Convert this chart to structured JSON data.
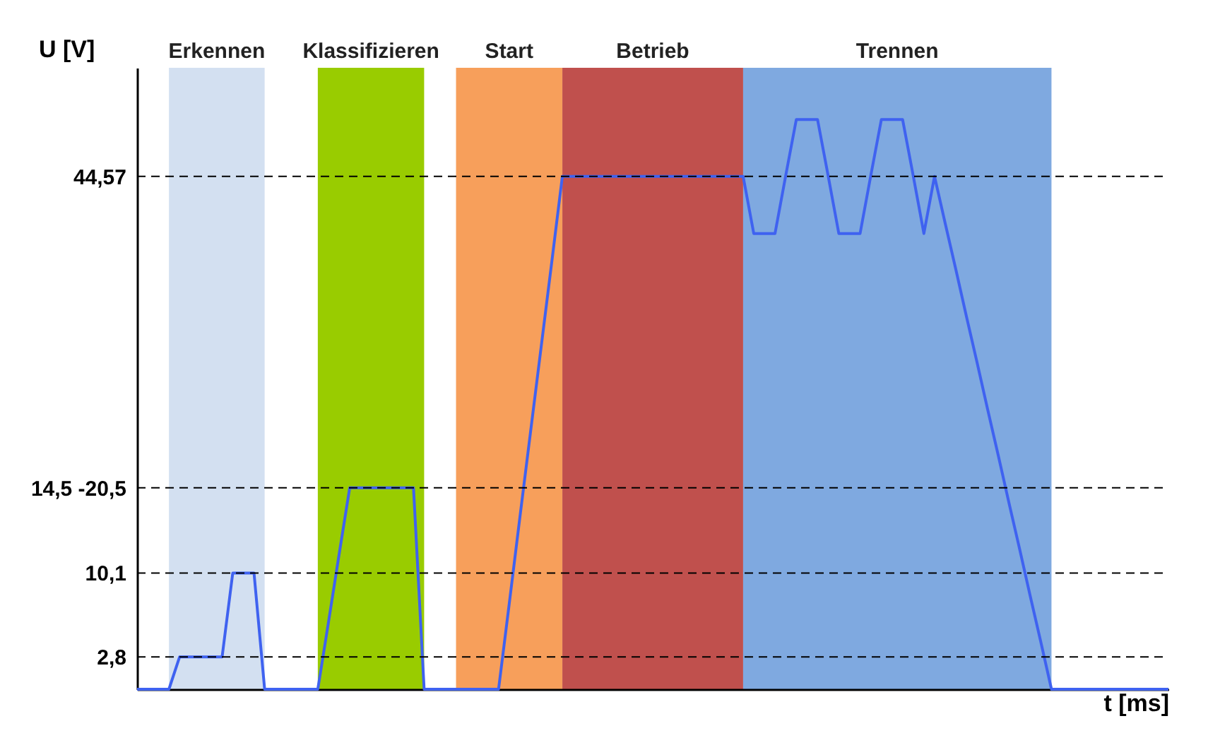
{
  "chart_data": {
    "type": "line",
    "ylabel": "U [V]",
    "xlabel": "t [ms]",
    "ylim": [
      0,
      54
    ],
    "categories": [
      null,
      null,
      null,
      null,
      null,
      null,
      null,
      null,
      null,
      null,
      null,
      null,
      null,
      null,
      null,
      null,
      null,
      null,
      null,
      null,
      null,
      null,
      null,
      null,
      null,
      null,
      null,
      null,
      null,
      null,
      null,
      null,
      null,
      null,
      null,
      null,
      null,
      null,
      null,
      null,
      null,
      null,
      null,
      null,
      null,
      null,
      null,
      null,
      null,
      null,
      null,
      null,
      null,
      null,
      null,
      null,
      null,
      null,
      null,
      null,
      null,
      null,
      null,
      null,
      null,
      null,
      null,
      null,
      null,
      null,
      null,
      null,
      null,
      null,
      null,
      null,
      null,
      null,
      null,
      null,
      null,
      null,
      null,
      null,
      null,
      null,
      null,
      null,
      null,
      null,
      null,
      null,
      null,
      null,
      null,
      null,
      null,
      null
    ],
    "yticks": [
      {
        "value": 2.8,
        "label": "2,8"
      },
      {
        "value": 10.1,
        "label": "10,1"
      },
      {
        "value": 17.5,
        "label": "14,5 -20,5"
      },
      {
        "value": 44.57,
        "label": "44,57"
      }
    ],
    "tick_labels": "y",
    "annotations": [
      "Erkennen",
      "Klassifizieren",
      "Start",
      "Betrieb",
      "Trennen"
    ],
    "ref_lines": [
      {
        "axis": "y",
        "value": 2.8,
        "color": "#000000",
        "line_style": "dashed"
      },
      {
        "axis": "y",
        "value": 10.1,
        "color": "#000000",
        "line_style": "dashed"
      },
      {
        "axis": "y",
        "value": 17.5,
        "color": "#000000",
        "line_style": "dashed"
      },
      {
        "axis": "y",
        "value": 44.57,
        "color": "#000000",
        "line_style": "dashed"
      }
    ],
    "series": [
      {
        "color": "#3f62f0",
        "values": [
          0,
          0,
          0,
          0,
          2.8,
          2.8,
          2.8,
          2.8,
          2.8,
          10.1,
          10.1,
          10.1,
          0,
          0,
          0,
          0,
          0,
          0,
          5.8,
          11.7,
          17.5,
          17.5,
          17.5,
          17.5,
          17.5,
          17.5,
          17.5,
          0,
          0,
          0,
          0,
          0,
          0,
          0,
          0,
          7.4,
          14.9,
          22.3,
          29.7,
          37.1,
          44.57,
          44.57,
          44.57,
          44.57,
          44.57,
          44.57,
          44.57,
          44.57,
          44.57,
          44.57,
          44.57,
          44.57,
          44.57,
          44.57,
          44.57,
          44.57,
          44.57,
          44.57,
          39.6,
          39.6,
          39.6,
          44.6,
          49.5,
          49.5,
          49.5,
          44.6,
          39.6,
          39.6,
          39.6,
          44.6,
          49.5,
          49.5,
          49.5,
          44.6,
          39.6,
          44.57,
          40.5,
          36.5,
          32.4,
          28.4,
          24.3,
          20.3,
          16.2,
          12.2,
          8.1,
          4.1,
          0,
          0,
          0,
          0,
          0,
          0,
          0,
          0,
          0,
          0,
          0,
          0
        ]
      }
    ]
  }
}
